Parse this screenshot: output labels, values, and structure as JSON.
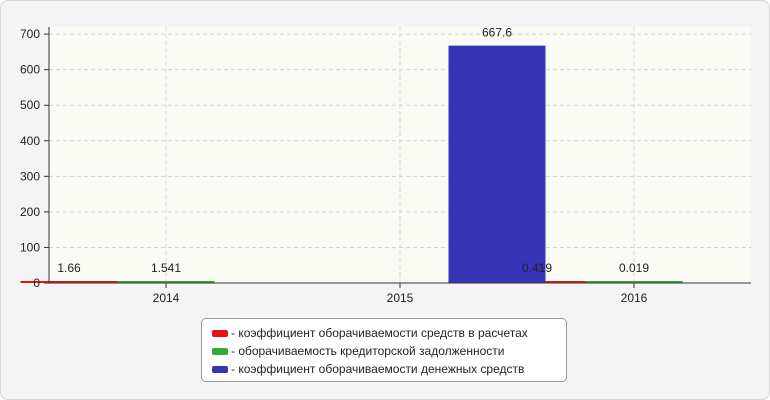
{
  "chart_data": {
    "type": "bar",
    "categories": [
      "2014",
      "2015",
      "2016"
    ],
    "series": [
      {
        "name": "- коэффициент оборачиваемости средств в расчетах",
        "color": "#ee1111",
        "values": [
          1.66,
          null,
          0.419
        ],
        "labels": [
          "1.66",
          "",
          "0.419"
        ]
      },
      {
        "name": "- оборачиваемость кредиторской задолженности",
        "color": "#33aa33",
        "values": [
          1.541,
          null,
          0.019
        ],
        "labels": [
          "1.541",
          "",
          "0.019"
        ]
      },
      {
        "name": "- коэффициент оборачиваемости денежных средств",
        "color": "#3535b5",
        "values": [
          null,
          667.6,
          null
        ],
        "labels": [
          "",
          "667.6",
          ""
        ]
      }
    ],
    "yticks": [
      0,
      100,
      200,
      300,
      400,
      500,
      600,
      700
    ],
    "ylim": [
      0,
      720
    ],
    "grid": true,
    "legend_position": "bottom"
  }
}
